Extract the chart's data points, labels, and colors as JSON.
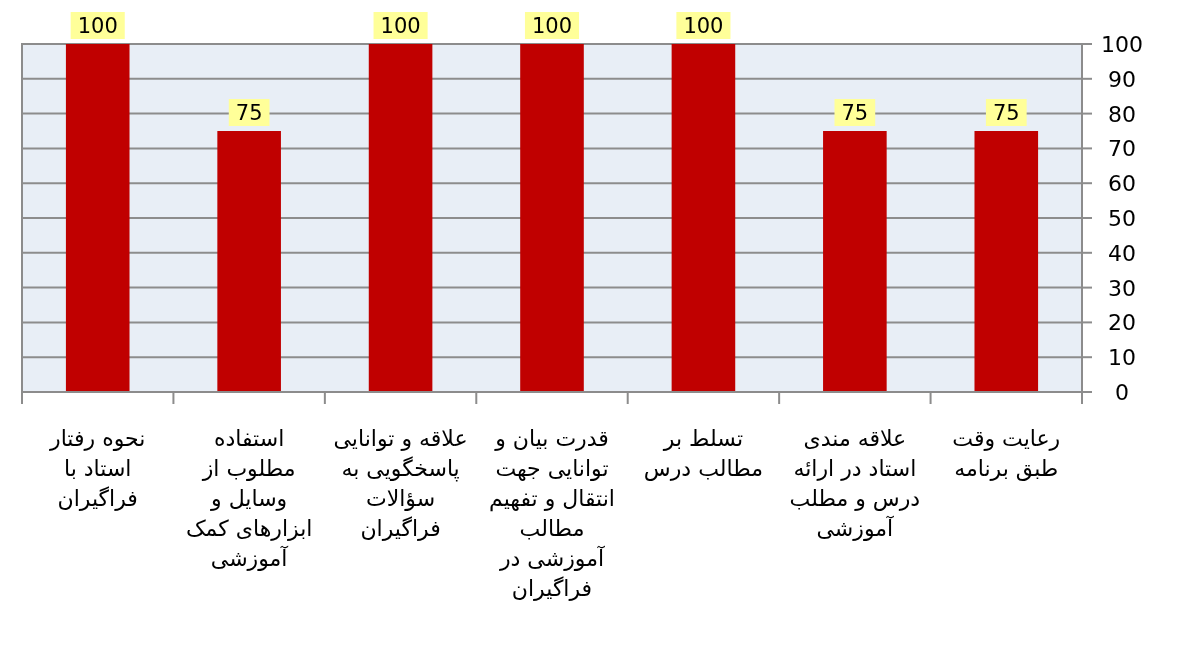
{
  "chart_data": {
    "type": "bar",
    "categories": [
      "نحوه رفتار استاد با فراگیران",
      "استفاده مطلوب از وسایل و ابزارهای کمک آموزشی",
      "علاقه و توانایی پاسخگویی به سؤالات فراگیران",
      "قدرت بیان و توانایی جهت انتقال و تفهیم مطالب آموزشی در فراگیران",
      "تسلط بر مطالب درس",
      "علاقه مندی استاد در ارائه درس و مطلب آموزشی",
      "رعایت وقت طبق برنامه"
    ],
    "values": [
      100,
      75,
      100,
      100,
      100,
      75,
      75
    ],
    "color": "#c00000",
    "ylim": [
      0,
      100
    ],
    "yticks": [
      0,
      10,
      20,
      30,
      40,
      50,
      60,
      70,
      80,
      90,
      100
    ],
    "grid": "y",
    "data_labels": true
  }
}
